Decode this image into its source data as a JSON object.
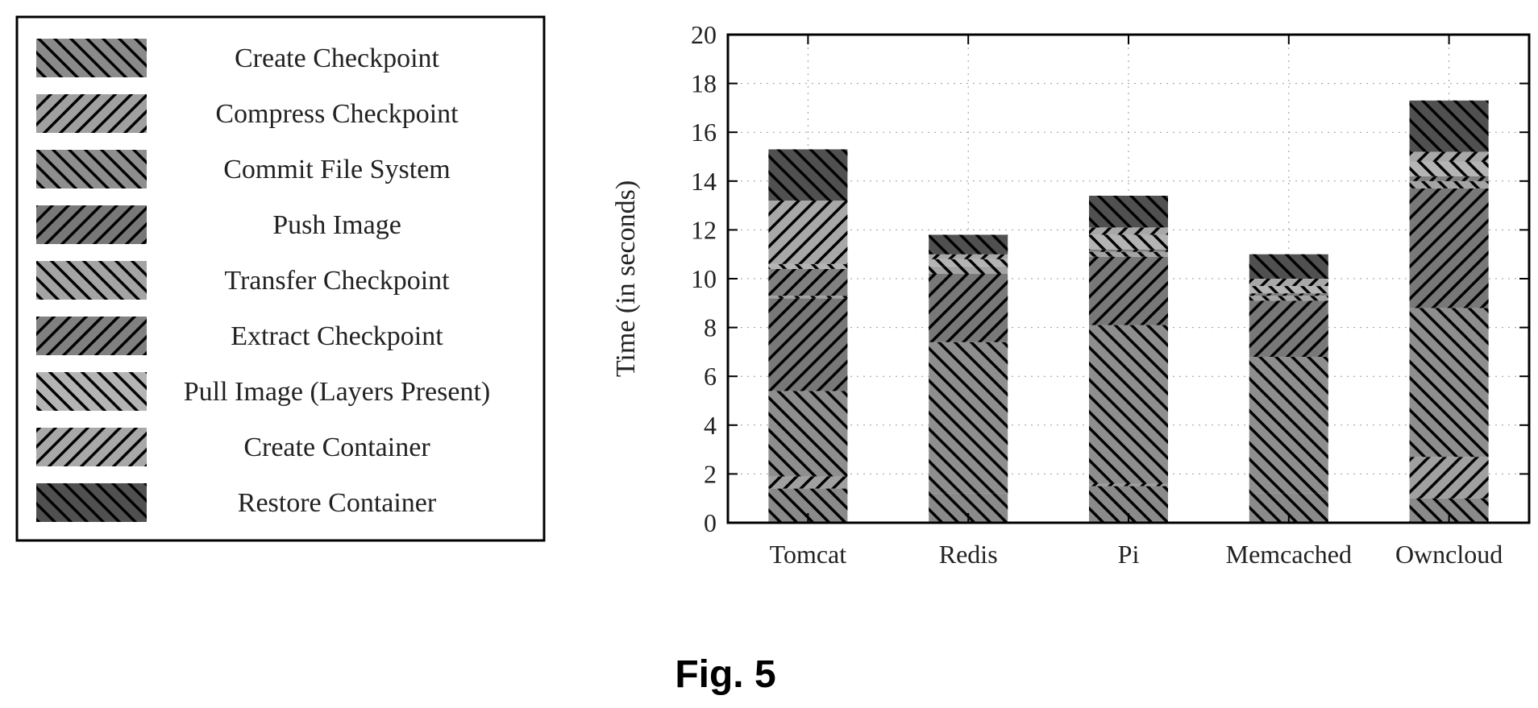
{
  "figure_label": "Fig. 5",
  "chart_data": {
    "type": "bar",
    "stacked": true,
    "categories": [
      "Tomcat",
      "Redis",
      "Pi",
      "Memcached",
      "Owncloud"
    ],
    "ylabel": "Time (in seconds)",
    "xlabel": "",
    "ylim": [
      0,
      20
    ],
    "yticks": [
      0,
      2,
      4,
      6,
      8,
      10,
      12,
      14,
      16,
      18,
      20
    ],
    "grid": true,
    "legend_position": "left",
    "series": [
      {
        "name": "Create Checkpoint",
        "values": [
          1.4,
          1.2,
          1.5,
          1.2,
          1.0
        ],
        "color": "#8a8a8a",
        "pattern": "back"
      },
      {
        "name": "Compress Checkpoint",
        "values": [
          0.5,
          0.0,
          0.1,
          0.0,
          1.7
        ],
        "color": "#a0a0a0",
        "pattern": "fwd"
      },
      {
        "name": "Commit File System",
        "values": [
          3.5,
          6.2,
          6.5,
          5.6,
          6.1
        ],
        "color": "#8e8e8e",
        "pattern": "back"
      },
      {
        "name": "Push Image",
        "values": [
          3.8,
          2.8,
          2.8,
          2.3,
          4.9
        ],
        "color": "#787878",
        "pattern": "fwd"
      },
      {
        "name": "Transfer Checkpoint",
        "values": [
          0.1,
          0.3,
          0.2,
          0.2,
          0.3
        ],
        "color": "#a4a4a4",
        "pattern": "back"
      },
      {
        "name": "Extract Checkpoint",
        "values": [
          1.1,
          0.0,
          0.1,
          0.1,
          0.2
        ],
        "color": "#808080",
        "pattern": "fwd"
      },
      {
        "name": "Pull Image (Layers Present)",
        "values": [
          0.2,
          0.3,
          0.6,
          0.3,
          0.6
        ],
        "color": "#b4b4b4",
        "pattern": "back"
      },
      {
        "name": "Create Container",
        "values": [
          2.6,
          0.2,
          0.3,
          0.3,
          0.4
        ],
        "color": "#a8a8a8",
        "pattern": "fwd"
      },
      {
        "name": "Restore Container",
        "values": [
          2.1,
          0.8,
          1.3,
          1.0,
          2.1
        ],
        "color": "#505050",
        "pattern": "back"
      }
    ]
  }
}
